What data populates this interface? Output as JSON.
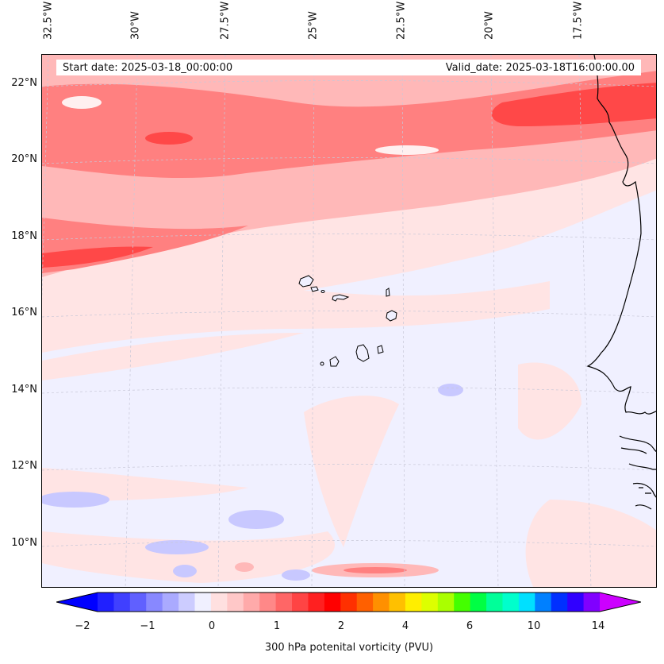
{
  "map": {
    "start_label": "Start date: 2025-03-18_00:00:00",
    "valid_label": "Valid_date: 2025-03-18T16:00:00.00",
    "lon_ticks": [
      "32.5°W",
      "30°W",
      "27.5°W",
      "25°W",
      "22.5°W",
      "20°W",
      "17.5°W"
    ],
    "lat_ticks": [
      "22°N",
      "20°N",
      "18°N",
      "16°N",
      "14°N",
      "12°N",
      "10°N"
    ],
    "variable": "300 hPa potenital vorticity (PVU)",
    "region": "Cape Verde islands and West African coast"
  },
  "colorbar": {
    "tick_labels": [
      "−2",
      "−1",
      "0",
      "1",
      "2",
      "4",
      "6",
      "10",
      "14"
    ],
    "colors": [
      "#0000ff",
      "#2020ff",
      "#4040ff",
      "#6060ff",
      "#8888ff",
      "#aaaaff",
      "#ccccff",
      "#f0f0ff",
      "#ffe0e0",
      "#ffc8c8",
      "#ffaaaa",
      "#ff8888",
      "#ff6666",
      "#ff4444",
      "#ff2020",
      "#ff0000",
      "#ff3000",
      "#ff6000",
      "#ff9000",
      "#ffc000",
      "#ffee00",
      "#ddff00",
      "#aaff00",
      "#44ff00",
      "#00ff44",
      "#00ff99",
      "#00ffcc",
      "#00e0ff",
      "#0080ff",
      "#0030ff",
      "#3000ff",
      "#8000ff",
      "#cc00ff"
    ]
  },
  "pv_colors": {
    "background": "#f0f0ff",
    "light": "#ffe4e4",
    "medium": "#ffb8b8",
    "strong": "#ff8080",
    "max": "#ff4848",
    "negative": "#c8c8ff"
  }
}
